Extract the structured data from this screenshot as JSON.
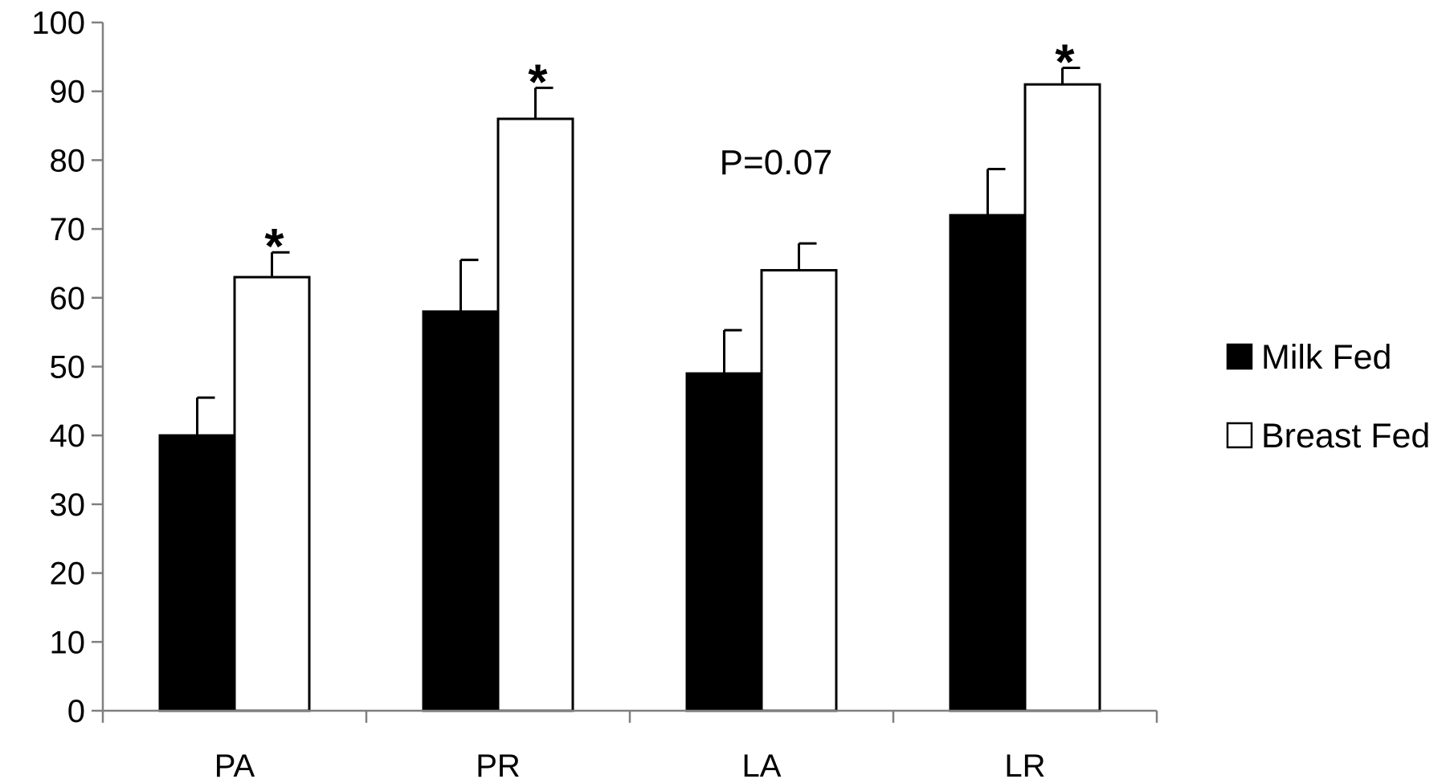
{
  "chart_data": {
    "type": "bar",
    "title": "",
    "xlabel": "",
    "ylabel": "",
    "categories": [
      "PA",
      "PR",
      "LA",
      "LR"
    ],
    "series": [
      {
        "name": "Milk Fed",
        "values": [
          40,
          58,
          49,
          72
        ],
        "errors": [
          5.5,
          7.5,
          6.3,
          6.7
        ],
        "fill": "#000000"
      },
      {
        "name": "Breast Fed",
        "values": [
          63,
          86,
          64,
          91
        ],
        "errors": [
          3.6,
          4.5,
          3.9,
          2.4
        ],
        "fill": "#ffffff"
      }
    ],
    "ylim": [
      0,
      100
    ],
    "yticks": [
      0,
      10,
      20,
      30,
      40,
      50,
      60,
      70,
      80,
      90,
      100
    ],
    "grid": false,
    "legend_position": "right",
    "annotations": [
      {
        "category": "PA",
        "text": "*"
      },
      {
        "category": "PR",
        "text": "*"
      },
      {
        "category": "LA",
        "text": "P=0.07"
      },
      {
        "category": "LR",
        "text": "*"
      }
    ],
    "colors": {
      "axis": "#808080",
      "bar_stroke": "#000000"
    }
  }
}
